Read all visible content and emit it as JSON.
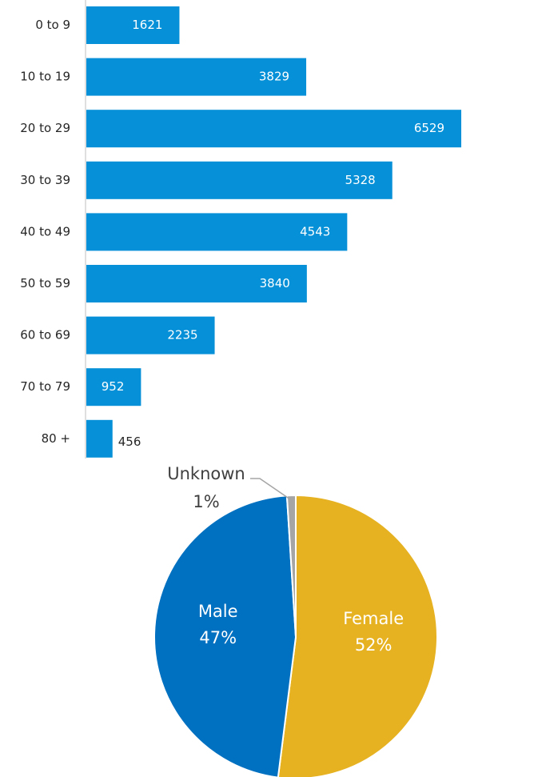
{
  "chart_data": [
    {
      "type": "bar",
      "orientation": "horizontal",
      "categories": [
        "0 to 9",
        "10 to 19",
        "20 to 29",
        "30 to 39",
        "40 to 49",
        "50 to 59",
        "60 to 69",
        "70 to 79",
        "80 +"
      ],
      "values": [
        1621,
        3829,
        6529,
        5328,
        4543,
        3840,
        2235,
        952,
        456
      ],
      "color": "#0590d7"
    },
    {
      "type": "pie",
      "categories": [
        "Female",
        "Male",
        "Unknown"
      ],
      "values": [
        52,
        47,
        1
      ],
      "value_labels": [
        "52%",
        "47%",
        "1%"
      ],
      "colors": [
        "#e6b222",
        "#0070c0",
        "#a5a5a5"
      ]
    }
  ]
}
